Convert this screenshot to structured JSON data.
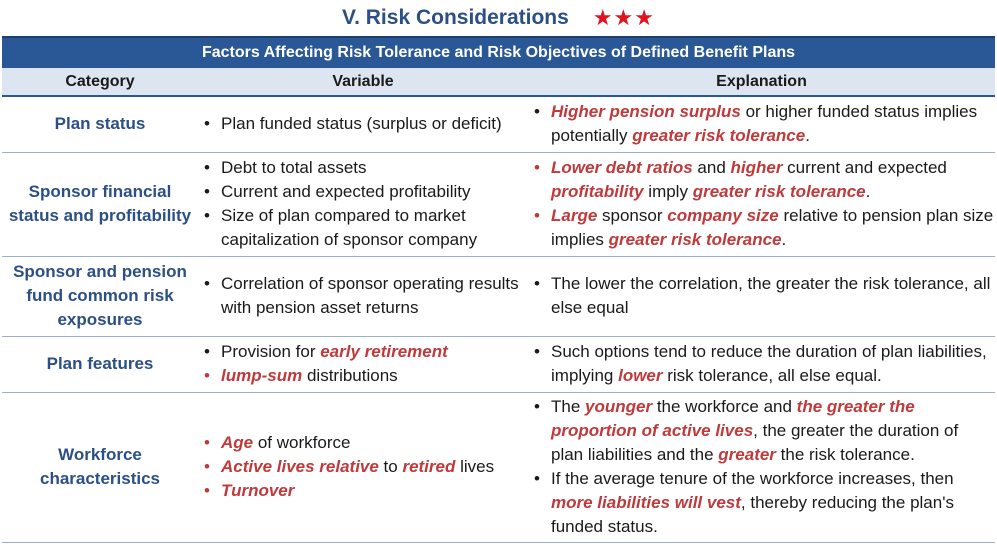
{
  "title": "V. Risk Considerations",
  "stars": "★★★",
  "banner": "Factors Affecting Risk Tolerance and Risk Objectives of Defined Benefit Plans",
  "headers": {
    "category": "Category",
    "variable": "Variable",
    "explanation": "Explanation"
  },
  "rows": [
    {
      "category": "Plan status",
      "variables": [
        {
          "parts": [
            {
              "t": "Plan funded status (surplus or deficit)"
            }
          ]
        }
      ],
      "explanations": [
        {
          "parts": [
            {
              "t": "Higher pension surplus",
              "hl": true
            },
            {
              "t": " or higher funded status implies potentially "
            },
            {
              "t": "greater risk tolerance",
              "hl": true
            },
            {
              "t": "."
            }
          ]
        }
      ]
    },
    {
      "category": "Sponsor financial status and profitability",
      "variables": [
        {
          "parts": [
            {
              "t": "Debt to total assets"
            }
          ]
        },
        {
          "parts": [
            {
              "t": "Current and expected profitability"
            }
          ]
        },
        {
          "parts": [
            {
              "t": "Size of plan compared to market capitalization of sponsor company"
            }
          ]
        }
      ],
      "explanations": [
        {
          "red": true,
          "parts": [
            {
              "t": "Lower debt ratios",
              "hl": true
            },
            {
              "t": " and "
            },
            {
              "t": "higher",
              "hl": true
            },
            {
              "t": " current and expected "
            },
            {
              "t": "profitability",
              "hl": true
            },
            {
              "t": " imply "
            },
            {
              "t": "greater risk tolerance",
              "hl": true
            },
            {
              "t": "."
            }
          ]
        },
        {
          "red": true,
          "parts": [
            {
              "t": "Large",
              "hl": true
            },
            {
              "t": " sponsor "
            },
            {
              "t": "company size",
              "hl": true
            },
            {
              "t": " relative to pension plan size implies "
            },
            {
              "t": "greater risk tolerance",
              "hl": true
            },
            {
              "t": "."
            }
          ]
        }
      ]
    },
    {
      "category": "Sponsor and pension fund common risk exposures",
      "variables": [
        {
          "parts": [
            {
              "t": "Correlation of sponsor operating results with pension asset returns"
            }
          ]
        }
      ],
      "explanations": [
        {
          "parts": [
            {
              "t": "The lower the correlation, the greater the risk tolerance, all else equal"
            }
          ]
        }
      ]
    },
    {
      "category": "Plan features",
      "variables": [
        {
          "parts": [
            {
              "t": "Provision for "
            },
            {
              "t": "early retirement",
              "hl": true
            }
          ]
        },
        {
          "red": true,
          "parts": [
            {
              "t": "lump-sum",
              "hl": true
            },
            {
              "t": " distributions"
            }
          ]
        }
      ],
      "explanations": [
        {
          "parts": [
            {
              "t": "Such options tend to reduce the duration of plan liabilities, implying "
            },
            {
              "t": "lower",
              "hl": true
            },
            {
              "t": " risk tolerance, all else equal."
            }
          ]
        }
      ]
    },
    {
      "category": "Workforce characteristics",
      "variables": [
        {
          "red": true,
          "parts": [
            {
              "t": "Age",
              "hl": true
            },
            {
              "t": " of workforce"
            }
          ]
        },
        {
          "red": true,
          "parts": [
            {
              "t": "Active lives relative",
              "hl": true
            },
            {
              "t": " to "
            },
            {
              "t": "retired",
              "hl": true
            },
            {
              "t": " lives"
            }
          ]
        },
        {
          "red": true,
          "parts": [
            {
              "t": "Turnover",
              "hl": true
            }
          ]
        }
      ],
      "explanations": [
        {
          "parts": [
            {
              "t": "The "
            },
            {
              "t": "younger",
              "hl": true
            },
            {
              "t": " the workforce and "
            },
            {
              "t": "the greater the proportion of active lives",
              "hl": true
            },
            {
              "t": ", the greater the duration of plan liabilities and the "
            },
            {
              "t": "greater",
              "hl": true
            },
            {
              "t": " the risk tolerance."
            }
          ]
        },
        {
          "parts": [
            {
              "t": "If the average tenure of the workforce increases, then "
            },
            {
              "t": "more liabilities will vest",
              "hl": true
            },
            {
              "t": ", thereby reducing the plan's funded status."
            }
          ]
        }
      ]
    }
  ]
}
